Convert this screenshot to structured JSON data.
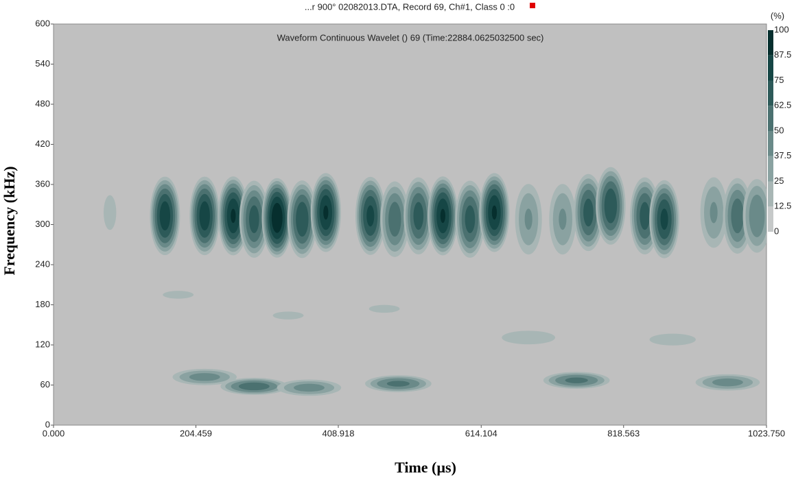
{
  "chart_data": {
    "type": "contour",
    "title": "...r 900° 02082013.DTA, Record 69, Ch#1, Class 0 :0",
    "subtitle": "Waveform Continuous Wavelet ()   69 (Time:22884.0625032500 sec)",
    "x_label": "Time (µs)",
    "y_label": "Frequency (kHz)",
    "colorbar_label": "(%)",
    "background": "#c0c0c0",
    "xlim": [
      0,
      1023.75
    ],
    "xticks": [
      {
        "value": 0,
        "label": "0.000"
      },
      204.459,
      408.918,
      614.104,
      818.563,
      {
        "value": 1023.75,
        "label": "1023.750"
      }
    ],
    "ylim": [
      0,
      600
    ],
    "yticks": [
      0,
      60,
      120,
      180,
      240,
      300,
      360,
      420,
      480,
      540,
      600
    ],
    "zlim": [
      0,
      100
    ],
    "zticks": [
      0,
      12.5,
      25,
      37.5,
      50,
      62.5,
      75,
      87.5,
      100
    ],
    "colors": [
      "#c6c9c9",
      "#a8b6b5",
      "#8aa2a1",
      "#6a8a89",
      "#4b7170",
      "#2d5a59",
      "#164645",
      "#062f2e"
    ],
    "x": [
      81,
      160,
      217,
      258,
      288,
      321,
      357,
      391,
      455,
      490,
      524,
      559,
      598,
      633,
      682,
      731,
      768,
      800,
      849,
      877,
      948,
      982,
      1010,
      217,
      288,
      367,
      495,
      751,
      968,
      682,
      889,
      179,
      337,
      475
    ],
    "y": [
      318,
      313,
      313,
      313,
      308,
      310,
      308,
      318,
      313,
      308,
      313,
      313,
      308,
      318,
      308,
      308,
      318,
      328,
      313,
      308,
      318,
      313,
      313,
      72,
      58,
      56,
      62,
      67,
      64,
      131,
      128,
      195,
      164,
      174
    ],
    "z": [
      15,
      85,
      85,
      90,
      70,
      100,
      75,
      90,
      80,
      60,
      70,
      90,
      70,
      90,
      40,
      40,
      70,
      75,
      70,
      80,
      40,
      60,
      50,
      45,
      60,
      45,
      55,
      55,
      45,
      25,
      20,
      15,
      15,
      15
    ]
  }
}
